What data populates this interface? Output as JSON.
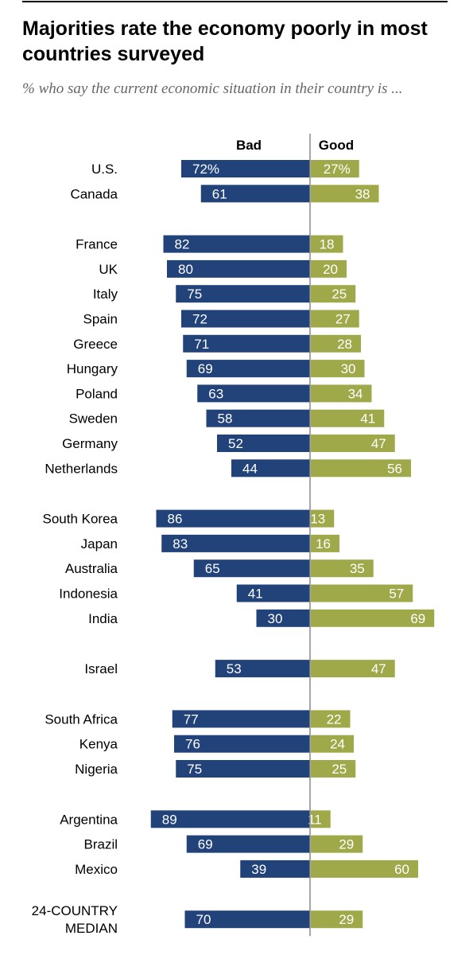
{
  "title": "Majorities rate the economy poorly in most countries surveyed",
  "subtitle": "% who say the current economic situation in their country is ...",
  "colors": {
    "bad": "#22427a",
    "good": "#9fa94a",
    "divider": "#888888"
  },
  "chart_data": {
    "type": "bar",
    "orientation": "diverging-horizontal",
    "series": [
      {
        "name": "Bad",
        "color": "#22427a"
      },
      {
        "name": "Good",
        "color": "#9fa94a"
      }
    ],
    "groups": [
      {
        "rows": [
          {
            "label": "U.S.",
            "bad": 72,
            "good": 27,
            "bad_text": "72%",
            "good_text": "27%"
          },
          {
            "label": "Canada",
            "bad": 61,
            "good": 38,
            "bad_text": "61",
            "good_text": "38"
          }
        ]
      },
      {
        "rows": [
          {
            "label": "France",
            "bad": 82,
            "good": 18,
            "bad_text": "82",
            "good_text": "18"
          },
          {
            "label": "UK",
            "bad": 80,
            "good": 20,
            "bad_text": "80",
            "good_text": "20"
          },
          {
            "label": "Italy",
            "bad": 75,
            "good": 25,
            "bad_text": "75",
            "good_text": "25"
          },
          {
            "label": "Spain",
            "bad": 72,
            "good": 27,
            "bad_text": "72",
            "good_text": "27"
          },
          {
            "label": "Greece",
            "bad": 71,
            "good": 28,
            "bad_text": "71",
            "good_text": "28"
          },
          {
            "label": "Hungary",
            "bad": 69,
            "good": 30,
            "bad_text": "69",
            "good_text": "30"
          },
          {
            "label": "Poland",
            "bad": 63,
            "good": 34,
            "bad_text": "63",
            "good_text": "34"
          },
          {
            "label": "Sweden",
            "bad": 58,
            "good": 41,
            "bad_text": "58",
            "good_text": "41"
          },
          {
            "label": "Germany",
            "bad": 52,
            "good": 47,
            "bad_text": "52",
            "good_text": "47"
          },
          {
            "label": "Netherlands",
            "bad": 44,
            "good": 56,
            "bad_text": "44",
            "good_text": "56"
          }
        ]
      },
      {
        "rows": [
          {
            "label": "South Korea",
            "bad": 86,
            "good": 13,
            "bad_text": "86",
            "good_text": "13"
          },
          {
            "label": "Japan",
            "bad": 83,
            "good": 16,
            "bad_text": "83",
            "good_text": "16"
          },
          {
            "label": "Australia",
            "bad": 65,
            "good": 35,
            "bad_text": "65",
            "good_text": "35"
          },
          {
            "label": "Indonesia",
            "bad": 41,
            "good": 57,
            "bad_text": "41",
            "good_text": "57"
          },
          {
            "label": "India",
            "bad": 30,
            "good": 69,
            "bad_text": "30",
            "good_text": "69"
          }
        ]
      },
      {
        "rows": [
          {
            "label": "Israel",
            "bad": 53,
            "good": 47,
            "bad_text": "53",
            "good_text": "47"
          }
        ]
      },
      {
        "rows": [
          {
            "label": "South Africa",
            "bad": 77,
            "good": 22,
            "bad_text": "77",
            "good_text": "22"
          },
          {
            "label": "Kenya",
            "bad": 76,
            "good": 24,
            "bad_text": "76",
            "good_text": "24"
          },
          {
            "label": "Nigeria",
            "bad": 75,
            "good": 25,
            "bad_text": "75",
            "good_text": "25"
          }
        ]
      },
      {
        "rows": [
          {
            "label": "Argentina",
            "bad": 89,
            "good": 11,
            "bad_text": "89",
            "good_text": "11"
          },
          {
            "label": "Brazil",
            "bad": 69,
            "good": 29,
            "bad_text": "69",
            "good_text": "29"
          },
          {
            "label": "Mexico",
            "bad": 39,
            "good": 60,
            "bad_text": "39",
            "good_text": "60"
          }
        ]
      },
      {
        "rows": [
          {
            "label": "24-COUNTRY\nMEDIAN",
            "bad": 70,
            "good": 29,
            "bad_text": "70",
            "good_text": "29"
          }
        ]
      }
    ]
  }
}
